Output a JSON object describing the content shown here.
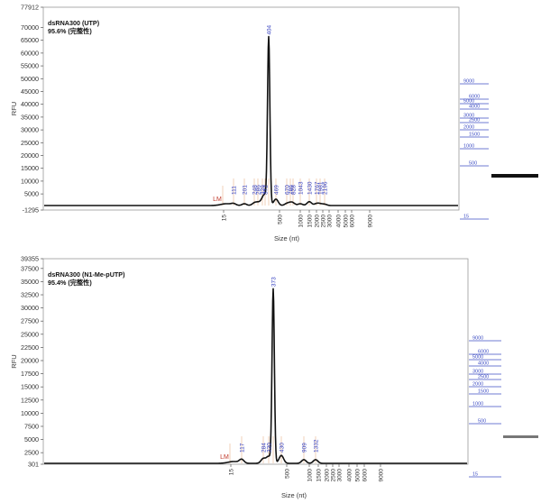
{
  "chart_data": [
    {
      "type": "line",
      "title": "dsRNA300 (UTP)",
      "subtitle": "95.6% (完整性)",
      "ylabel": "RFU",
      "xlabel": "Size (nt)",
      "ylim": [
        -1295,
        77912
      ],
      "yticks": [
        -1295,
        5000,
        10000,
        15000,
        20000,
        25000,
        30000,
        35000,
        40000,
        45000,
        50000,
        55000,
        60000,
        65000,
        70000,
        77912
      ],
      "xticks": [
        "15",
        "500",
        "1000",
        "1500",
        "2000",
        "2500",
        "3000",
        "4000",
        "5000",
        "6000",
        "9000"
      ],
      "marker_label": "LM",
      "peaks": [
        {
          "label": "111",
          "size": 111,
          "rfu": 600
        },
        {
          "label": "201",
          "size": 201,
          "rfu": 700
        },
        {
          "label": "248",
          "size": 248,
          "rfu": 900
        },
        {
          "label": "286",
          "size": 286,
          "rfu": 1000
        },
        {
          "label": "329",
          "size": 329,
          "rfu": 1500
        },
        {
          "label": "372",
          "size": 372,
          "rfu": 3500
        },
        {
          "label": "404",
          "size": 404,
          "rfu": 65000
        },
        {
          "label": "469",
          "size": 469,
          "rfu": 2500
        },
        {
          "label": "670",
          "size": 670,
          "rfu": 700
        },
        {
          "label": "786",
          "size": 786,
          "rfu": 800
        },
        {
          "label": "828",
          "size": 828,
          "rfu": 800
        },
        {
          "label": "1043",
          "size": 1043,
          "rfu": 700
        },
        {
          "label": "1430",
          "size": 1430,
          "rfu": 1500
        },
        {
          "label": "1767",
          "size": 1767,
          "rfu": 700
        },
        {
          "label": "1981",
          "size": 1981,
          "rfu": 600
        },
        {
          "label": "2196",
          "size": 2196,
          "rfu": 500
        }
      ],
      "ladder": [
        "9000",
        "6000",
        "5000",
        "4000",
        "3000",
        "2500",
        "2000",
        "1500",
        "1000",
        "500",
        "15"
      ]
    },
    {
      "type": "line",
      "title": "dsRNA300 (N1-Me-pUTP)",
      "subtitle": "95.4% (完整性)",
      "ylabel": "RFU",
      "xlabel": "Size (nt)",
      "ylim": [
        301,
        39355
      ],
      "yticks": [
        301,
        2500,
        5000,
        7500,
        10000,
        12500,
        15000,
        17500,
        20000,
        22500,
        25000,
        27500,
        30000,
        32500,
        35000,
        37500,
        39355
      ],
      "xticks": [
        "15",
        "500",
        "1000",
        "1500",
        "2000",
        "2500",
        "3000",
        "4000",
        "5000",
        "6000",
        "9000"
      ],
      "marker_label": "LM",
      "peaks": [
        {
          "label": "117",
          "size": 117,
          "rfu": 700
        },
        {
          "label": "284",
          "size": 284,
          "rfu": 900
        },
        {
          "label": "330",
          "size": 330,
          "rfu": 1300
        },
        {
          "label": "373",
          "size": 373,
          "rfu": 33000
        },
        {
          "label": "430",
          "size": 430,
          "rfu": 1500
        },
        {
          "label": "909",
          "size": 909,
          "rfu": 700
        },
        {
          "label": "1332",
          "size": 1332,
          "rfu": 700
        }
      ],
      "ladder": [
        "9000",
        "6000",
        "5000",
        "4000",
        "3000",
        "2500",
        "2000",
        "1500",
        "1000",
        "500",
        "15"
      ]
    }
  ],
  "colors": {
    "trace": "#111111",
    "peak_label": "#2f3bbf",
    "marker": "#c0392b",
    "peak_line": "#e8b48a",
    "ladder": "#3f4fc4",
    "axis": "#555555"
  }
}
